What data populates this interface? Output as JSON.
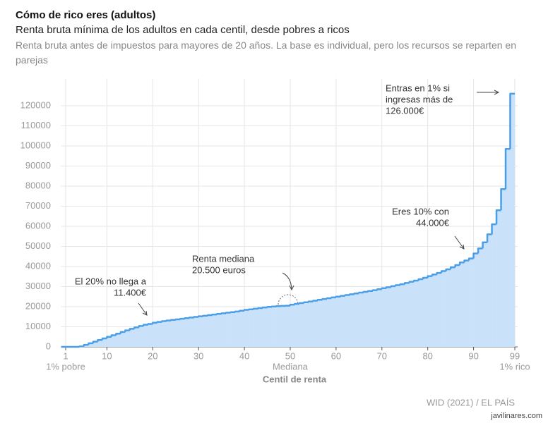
{
  "chart_data": {
    "type": "line",
    "step": true,
    "title": "Cómo de rico eres (adultos)",
    "subtitle": "Renta bruta mínima de los adultos en cada centil, desde pobres a ricos",
    "description": "Renta bruta antes de impuestos para mayores de 20 años. La base es individual, pero los recursos se reparten en parejas",
    "x_label": "Centil de renta",
    "source": "WID (2021) / EL PAÍS",
    "watermark": "javilinares.com",
    "x": [
      1,
      2,
      3,
      4,
      5,
      6,
      7,
      8,
      9,
      10,
      11,
      12,
      13,
      14,
      15,
      16,
      17,
      18,
      19,
      20,
      21,
      22,
      23,
      24,
      25,
      26,
      27,
      28,
      29,
      30,
      31,
      32,
      33,
      34,
      35,
      36,
      37,
      38,
      39,
      40,
      41,
      42,
      43,
      44,
      45,
      46,
      47,
      48,
      49,
      50,
      51,
      52,
      53,
      54,
      55,
      56,
      57,
      58,
      59,
      60,
      61,
      62,
      63,
      64,
      65,
      66,
      67,
      68,
      69,
      70,
      71,
      72,
      73,
      74,
      75,
      76,
      77,
      78,
      79,
      80,
      81,
      82,
      83,
      84,
      85,
      86,
      87,
      88,
      89,
      90,
      91,
      92,
      93,
      94,
      95,
      96,
      97,
      98,
      99
    ],
    "series": [
      {
        "name": "Renta bruta mínima",
        "color": "#4a9ee8",
        "fill": "#c9e2fa",
        "values": [
          0,
          0,
          0,
          0,
          200,
          1000,
          1800,
          2600,
          3400,
          4200,
          5000,
          5800,
          6600,
          7400,
          8200,
          9000,
          9700,
          10400,
          11000,
          11400,
          12000,
          12400,
          12800,
          13100,
          13400,
          13700,
          14000,
          14300,
          14600,
          14900,
          15200,
          15500,
          15800,
          16100,
          16400,
          16700,
          17000,
          17300,
          17600,
          18000,
          18400,
          18700,
          19000,
          19300,
          19600,
          19900,
          20100,
          20300,
          20400,
          20500,
          21000,
          21400,
          21800,
          22200,
          22600,
          23000,
          23400,
          23800,
          24200,
          24600,
          25000,
          25400,
          25800,
          26200,
          26600,
          27000,
          27400,
          27800,
          28200,
          28700,
          29200,
          29700,
          30200,
          30700,
          31200,
          31800,
          32400,
          33000,
          33700,
          34400,
          35200,
          36000,
          36800,
          37700,
          38600,
          39600,
          40700,
          42000,
          43000,
          44000,
          46500,
          49000,
          52000,
          56000,
          61000,
          68000,
          78500,
          98500,
          126000
        ]
      }
    ],
    "xlim": [
      0,
      99
    ],
    "xticks": [
      1,
      10,
      20,
      30,
      40,
      50,
      60,
      70,
      80,
      90,
      99
    ],
    "xtick_notes": [
      {
        "value": 1,
        "label": "1% pobre"
      },
      {
        "value": 50,
        "label": "Mediana"
      },
      {
        "value": 99,
        "label": "1% rico"
      }
    ],
    "ylim": [
      0,
      130000
    ],
    "yticks": [
      0,
      10000,
      20000,
      30000,
      40000,
      50000,
      60000,
      70000,
      80000,
      90000,
      100000,
      110000,
      120000
    ],
    "grid": true,
    "annotations": [
      {
        "lines": [
          "Entras en 1% si",
          "ingresas más de",
          "126.000€"
        ]
      },
      {
        "lines": [
          "Eres 10% con",
          "44.000€"
        ]
      },
      {
        "lines": [
          "Renta mediana",
          "20.500 euros"
        ]
      },
      {
        "lines": [
          "El 20% no llega a",
          "11.400€"
        ]
      }
    ]
  }
}
